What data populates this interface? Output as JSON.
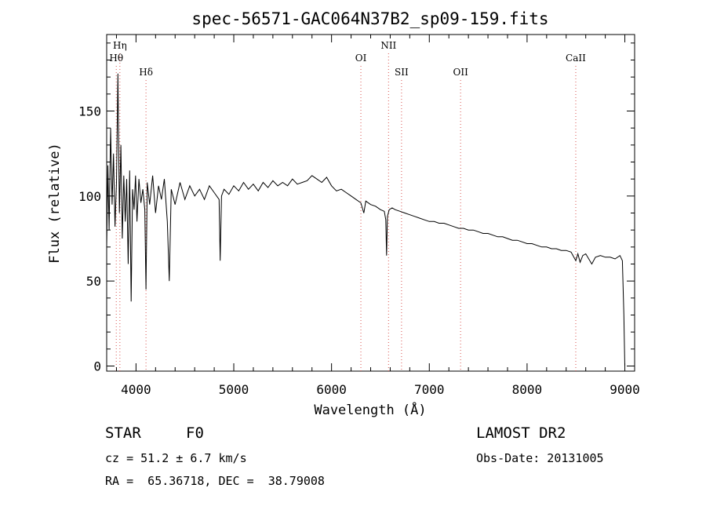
{
  "chart_data": {
    "type": "line",
    "title": "spec-56571-GAC064N37B2_sp09-159.fits",
    "xlabel": "Wavelength (Å)",
    "ylabel": "Flux (relative)",
    "xlim": [
      3700,
      9100
    ],
    "ylim": [
      -3,
      195
    ],
    "xticks": [
      4000,
      5000,
      6000,
      7000,
      8000,
      9000
    ],
    "yticks": [
      0,
      50,
      100,
      150
    ],
    "grid": false,
    "line_color": "#000000",
    "marker_color": "#d9534f",
    "spectral_lines": [
      {
        "label": "Hη",
        "x": 3835,
        "row": 0
      },
      {
        "label": "Hθ",
        "x": 3798,
        "row": 1
      },
      {
        "label": "Hδ",
        "x": 4102,
        "row": 2
      },
      {
        "label": "OI",
        "x": 6300,
        "row": 1
      },
      {
        "label": "NII",
        "x": 6583,
        "row": 0
      },
      {
        "label": "SII",
        "x": 6716,
        "row": 2
      },
      {
        "label": "OII",
        "x": 7320,
        "row": 2
      },
      {
        "label": "CaII",
        "x": 8498,
        "row": 1
      }
    ],
    "series": [
      {
        "x": [
          3700,
          3712,
          3725,
          3740,
          3755,
          3770,
          3785,
          3800,
          3815,
          3830,
          3845,
          3860,
          3875,
          3890,
          3905,
          3920,
          3935,
          3950,
          3965,
          3980,
          3995,
          4010,
          4030,
          4050,
          4070,
          4090,
          4102,
          4115,
          4140,
          4170,
          4200,
          4230,
          4260,
          4290,
          4320,
          4340,
          4360,
          4400,
          4450,
          4500,
          4550,
          4600,
          4650,
          4700,
          4750,
          4800,
          4850,
          4861,
          4875,
          4900,
          4950,
          5000,
          5050,
          5100,
          5150,
          5200,
          5250,
          5300,
          5350,
          5400,
          5450,
          5500,
          5550,
          5600,
          5650,
          5700,
          5750,
          5800,
          5850,
          5900,
          5950,
          6000,
          6050,
          6100,
          6150,
          6200,
          6250,
          6300,
          6330,
          6350,
          6400,
          6450,
          6500,
          6540,
          6555,
          6563,
          6572,
          6590,
          6620,
          6650,
          6700,
          6750,
          6800,
          6850,
          6900,
          6950,
          7000,
          7050,
          7100,
          7150,
          7200,
          7250,
          7300,
          7350,
          7400,
          7450,
          7500,
          7550,
          7600,
          7650,
          7700,
          7750,
          7800,
          7850,
          7900,
          7950,
          8000,
          8050,
          8100,
          8150,
          8200,
          8250,
          8300,
          8350,
          8400,
          8450,
          8498,
          8520,
          8542,
          8570,
          8600,
          8662,
          8700,
          8750,
          8800,
          8850,
          8900,
          8950,
          8975,
          8990,
          9000
        ],
        "values": [
          70,
          118,
          80,
          140,
          95,
          125,
          82,
          108,
          172,
          90,
          130,
          75,
          112,
          85,
          110,
          60,
          115,
          38,
          104,
          92,
          112,
          85,
          110,
          96,
          104,
          92,
          45,
          108,
          95,
          112,
          90,
          106,
          98,
          110,
          85,
          50,
          104,
          95,
          108,
          98,
          106,
          100,
          104,
          98,
          106,
          102,
          98,
          62,
          100,
          104,
          101,
          106,
          103,
          108,
          104,
          107,
          103,
          108,
          105,
          109,
          106,
          108,
          106,
          110,
          107,
          108,
          109,
          112,
          110,
          108,
          111,
          106,
          103,
          104,
          102,
          100,
          98,
          96,
          90,
          97,
          95,
          94,
          92,
          91,
          86,
          65,
          88,
          92,
          93,
          92,
          91,
          90,
          89,
          88,
          87,
          86,
          85,
          85,
          84,
          84,
          83,
          82,
          81,
          81,
          80,
          80,
          79,
          78,
          78,
          77,
          76,
          76,
          75,
          74,
          74,
          73,
          72,
          72,
          71,
          70,
          70,
          69,
          69,
          68,
          68,
          67,
          62,
          66,
          61,
          65,
          66,
          60,
          64,
          65,
          64,
          64,
          63,
          65,
          62,
          30,
          0
        ]
      }
    ]
  },
  "info": {
    "object_type": "STAR",
    "subclass": "F0",
    "survey": "LAMOST DR2",
    "cz": "cz = 51.2 ± 6.7 km/s",
    "obs_date": "Obs-Date: 20131005",
    "coords": "RA =  65.36718, DEC =  38.79008"
  }
}
